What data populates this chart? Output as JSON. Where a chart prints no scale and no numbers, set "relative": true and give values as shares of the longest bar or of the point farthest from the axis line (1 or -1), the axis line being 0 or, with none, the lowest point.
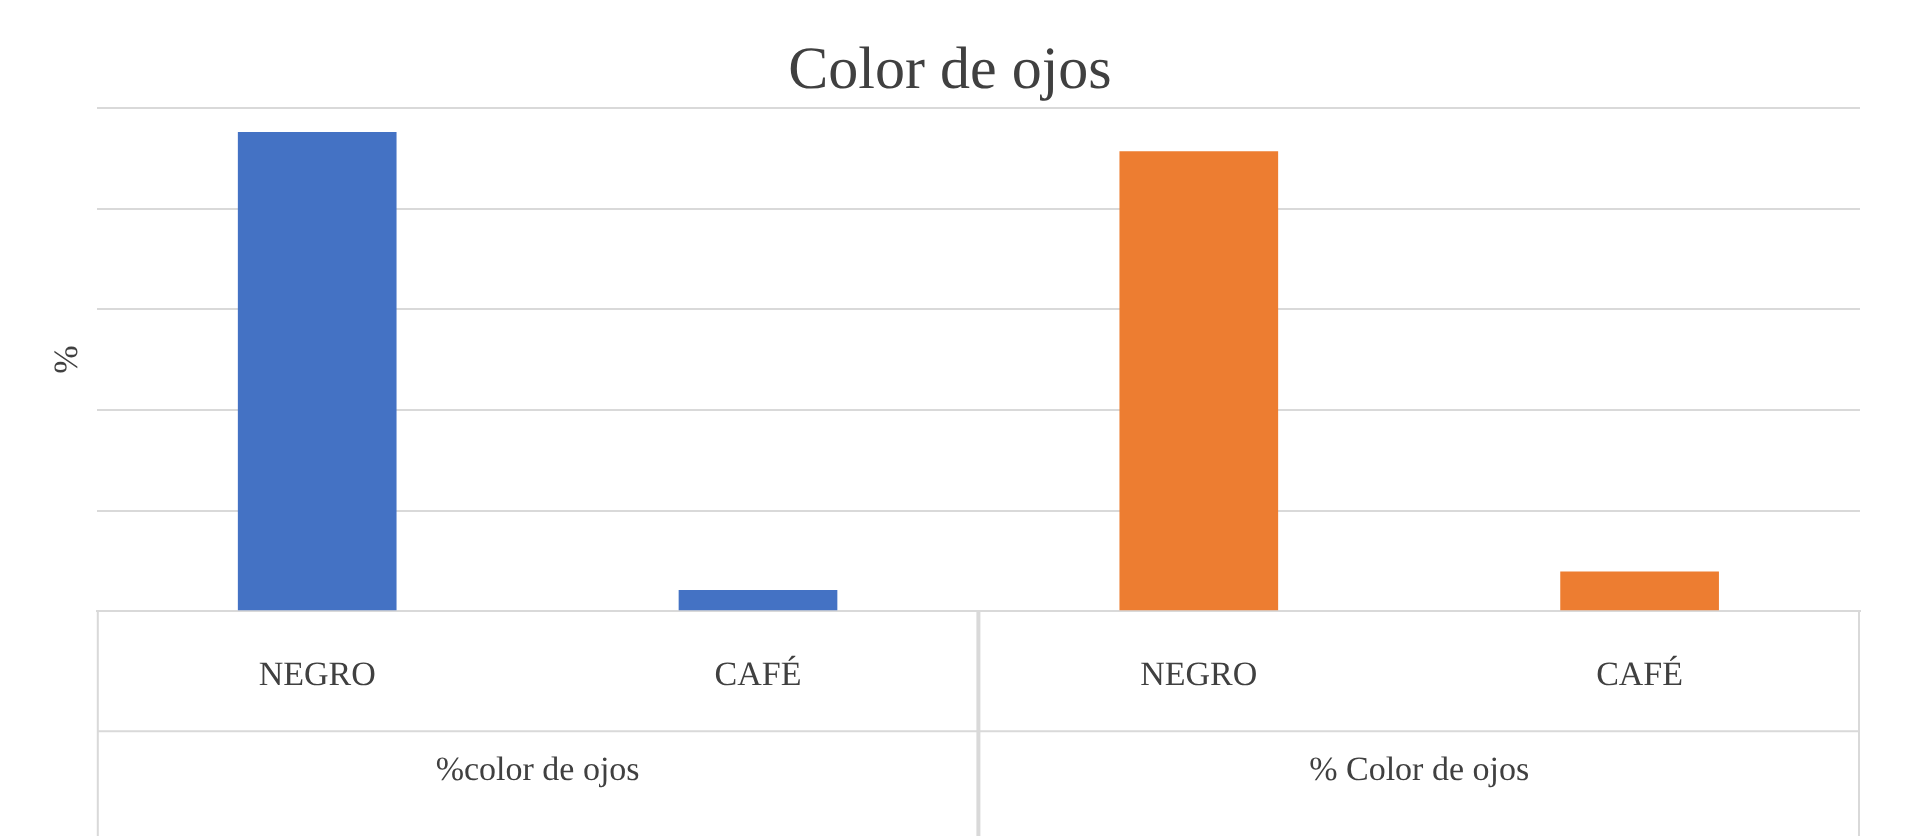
{
  "chart_data": {
    "type": "bar",
    "title": "Color de ojos",
    "ylabel": "%",
    "relative": true,
    "grid": "y",
    "legend": false,
    "categories": [
      "NEGRO",
      "CAFÉ",
      "NEGRO",
      "CAFÉ"
    ],
    "values": [
      1,
      0.044,
      0.96,
      0.083
    ],
    "colors": [
      "#4472c4",
      "#4472c4",
      "#ed7d31",
      "#ed7d31"
    ],
    "annotations": [
      "%color de ojos",
      "% Color de ojos"
    ]
  }
}
